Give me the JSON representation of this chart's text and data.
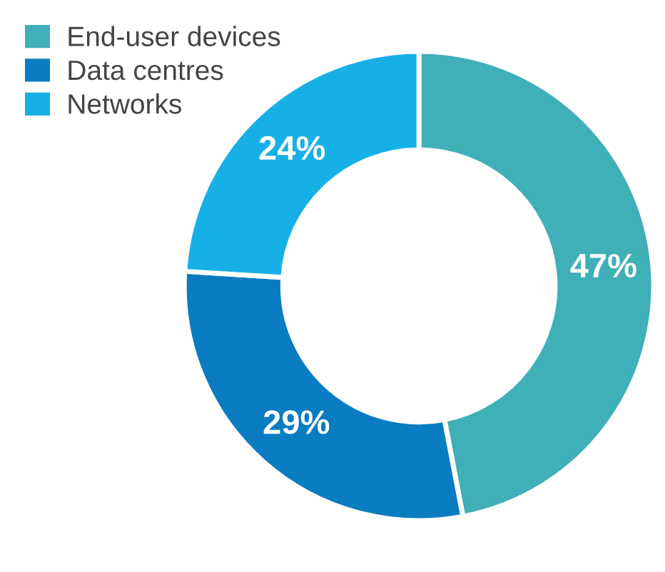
{
  "chart_data": {
    "type": "donut",
    "categories": [
      "End-user devices",
      "Data centres",
      "Networks"
    ],
    "values": [
      47,
      29,
      24
    ],
    "colors": [
      "#3fafb8",
      "#0a7cc1",
      "#17b0e6"
    ],
    "value_labels": [
      "47%",
      "29%",
      "24%"
    ],
    "legend": "top left"
  }
}
